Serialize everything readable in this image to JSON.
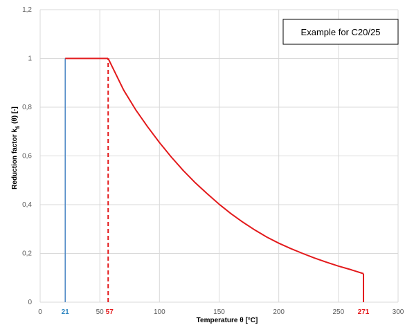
{
  "chart_data": {
    "type": "line",
    "title": "",
    "annotation": "Example for C20/25",
    "xlabel": "Temperature θ [°C]",
    "ylabel": "Reduction factor k",
    "ylabel_sub": "fi",
    "ylabel_suffix": " (θ) [-]",
    "xlim": [
      0,
      300
    ],
    "ylim": [
      0,
      1.2
    ],
    "x_ticks": [
      0,
      50,
      100,
      150,
      200,
      250,
      300
    ],
    "x_tick_labels": [
      "0",
      "50",
      "100",
      "150",
      "200",
      "250",
      "300"
    ],
    "y_ticks": [
      0,
      0.2,
      0.4,
      0.6,
      0.8,
      1.0,
      1.2
    ],
    "y_tick_labels": [
      "0",
      "0,2",
      "0,4",
      "0,6",
      "0,8",
      "1",
      "1,2"
    ],
    "grid": true,
    "series": [
      {
        "color": "#e31a1c",
        "style": "solid",
        "x": [
          57,
          60,
          70,
          80,
          90,
          100,
          110,
          120,
          130,
          140,
          150,
          160,
          170,
          180,
          190,
          200,
          210,
          220,
          230,
          240,
          250,
          260,
          271
        ],
        "y": [
          1.0,
          0.97,
          0.87,
          0.79,
          0.72,
          0.655,
          0.595,
          0.54,
          0.49,
          0.445,
          0.402,
          0.363,
          0.328,
          0.296,
          0.267,
          0.242,
          0.22,
          0.2,
          0.181,
          0.164,
          0.148,
          0.134,
          0.117
        ]
      }
    ],
    "plateau": {
      "x": [
        21,
        57
      ],
      "y": 1.0,
      "color": "#e31a1c"
    },
    "drop_at_end": {
      "x": 271,
      "y_top": 0.117,
      "color": "#e31a1c"
    },
    "vlines": [
      {
        "x": 21,
        "y_top": 1.0,
        "color": "#4a86c5",
        "style": "solid"
      },
      {
        "x": 57,
        "y_top": 1.0,
        "color": "#e31a1c",
        "style": "dashed"
      }
    ],
    "special_ticks": [
      {
        "x": 21,
        "label": "21",
        "color": "#2e86c1"
      },
      {
        "x": 57,
        "label": "57",
        "color": "#e31a1c"
      },
      {
        "x": 271,
        "label": "271",
        "color": "#e31a1c"
      }
    ],
    "colors": {
      "grid": "#d9d9d9",
      "tick_text": "#595959",
      "frame": "#000000"
    }
  }
}
